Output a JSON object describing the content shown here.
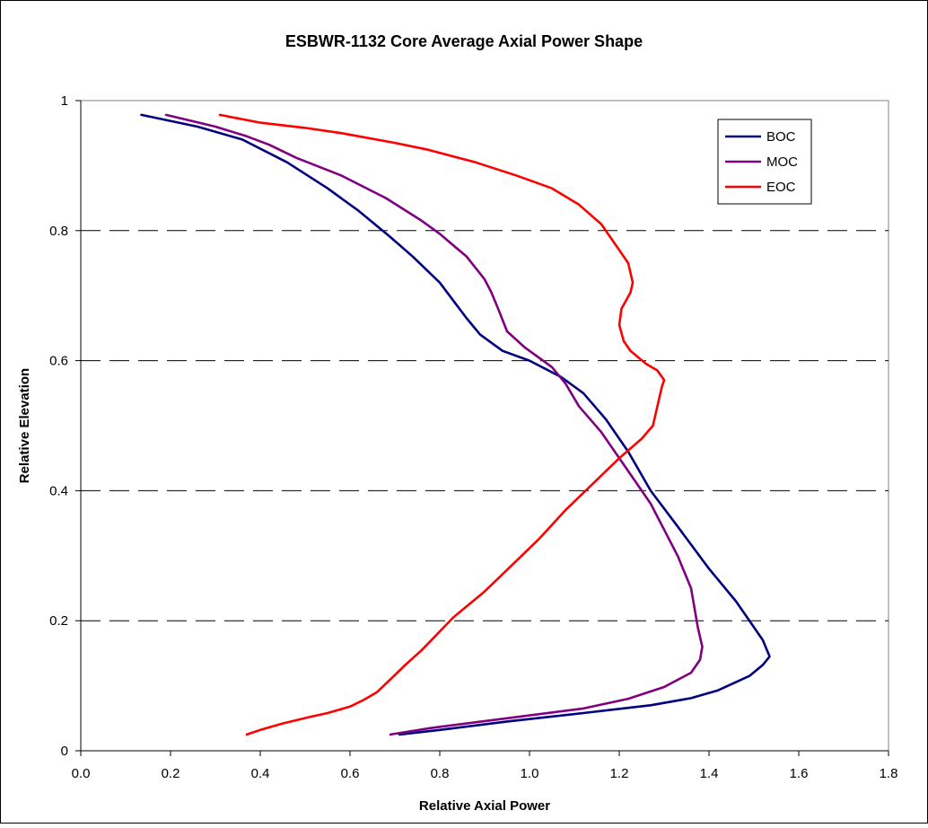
{
  "chart_data": {
    "type": "line",
    "title": "ESBWR-1132 Core Average Axial Power Shape",
    "xlabel": "Relative Axial Power",
    "ylabel": "Relative Elevation",
    "xlim": [
      0.0,
      1.8
    ],
    "ylim": [
      0,
      1
    ],
    "x_ticks": [
      "0.0",
      "0.2",
      "0.4",
      "0.6",
      "0.8",
      "1.0",
      "1.2",
      "1.4",
      "1.6",
      "1.8"
    ],
    "y_ticks": [
      "0",
      "0.2",
      "0.4",
      "0.6",
      "0.8",
      "1"
    ],
    "grid": "horizontal dashed",
    "legend_position": "top-right",
    "series": [
      {
        "name": "BOC",
        "color": "#000080",
        "points": [
          [
            0.71,
            0.025
          ],
          [
            0.8,
            0.032
          ],
          [
            0.95,
            0.045
          ],
          [
            1.12,
            0.058
          ],
          [
            1.22,
            0.066
          ],
          [
            1.27,
            0.07
          ],
          [
            1.36,
            0.081
          ],
          [
            1.42,
            0.093
          ],
          [
            1.49,
            0.115
          ],
          [
            1.52,
            0.132
          ],
          [
            1.535,
            0.145
          ],
          [
            1.52,
            0.17
          ],
          [
            1.5,
            0.19
          ],
          [
            1.46,
            0.23
          ],
          [
            1.4,
            0.28
          ],
          [
            1.33,
            0.345
          ],
          [
            1.27,
            0.4
          ],
          [
            1.22,
            0.46
          ],
          [
            1.17,
            0.51
          ],
          [
            1.12,
            0.55
          ],
          [
            1.07,
            0.575
          ],
          [
            1.0,
            0.6
          ],
          [
            0.94,
            0.615
          ],
          [
            0.89,
            0.64
          ],
          [
            0.86,
            0.665
          ],
          [
            0.8,
            0.72
          ],
          [
            0.74,
            0.76
          ],
          [
            0.69,
            0.79
          ],
          [
            0.62,
            0.83
          ],
          [
            0.55,
            0.865
          ],
          [
            0.46,
            0.905
          ],
          [
            0.36,
            0.94
          ],
          [
            0.26,
            0.96
          ],
          [
            0.135,
            0.978
          ]
        ]
      },
      {
        "name": "MOC",
        "color": "#800080",
        "points": [
          [
            0.69,
            0.025
          ],
          [
            0.78,
            0.035
          ],
          [
            0.95,
            0.05
          ],
          [
            1.12,
            0.065
          ],
          [
            1.22,
            0.08
          ],
          [
            1.3,
            0.098
          ],
          [
            1.36,
            0.12
          ],
          [
            1.38,
            0.14
          ],
          [
            1.385,
            0.16
          ],
          [
            1.375,
            0.19
          ],
          [
            1.36,
            0.25
          ],
          [
            1.33,
            0.3
          ],
          [
            1.27,
            0.38
          ],
          [
            1.21,
            0.44
          ],
          [
            1.16,
            0.49
          ],
          [
            1.11,
            0.53
          ],
          [
            1.08,
            0.565
          ],
          [
            1.05,
            0.59
          ],
          [
            0.99,
            0.62
          ],
          [
            0.95,
            0.645
          ],
          [
            0.93,
            0.68
          ],
          [
            0.915,
            0.705
          ],
          [
            0.9,
            0.725
          ],
          [
            0.86,
            0.76
          ],
          [
            0.8,
            0.795
          ],
          [
            0.76,
            0.815
          ],
          [
            0.68,
            0.85
          ],
          [
            0.58,
            0.885
          ],
          [
            0.48,
            0.912
          ],
          [
            0.42,
            0.932
          ],
          [
            0.37,
            0.945
          ],
          [
            0.3,
            0.96
          ],
          [
            0.19,
            0.978
          ]
        ]
      },
      {
        "name": "EOC",
        "color": "#ff0000",
        "points": [
          [
            0.37,
            0.025
          ],
          [
            0.4,
            0.032
          ],
          [
            0.45,
            0.042
          ],
          [
            0.51,
            0.052
          ],
          [
            0.55,
            0.058
          ],
          [
            0.6,
            0.068
          ],
          [
            0.63,
            0.078
          ],
          [
            0.66,
            0.09
          ],
          [
            0.69,
            0.11
          ],
          [
            0.72,
            0.13
          ],
          [
            0.76,
            0.155
          ],
          [
            0.83,
            0.205
          ],
          [
            0.9,
            0.245
          ],
          [
            0.96,
            0.285
          ],
          [
            1.02,
            0.325
          ],
          [
            1.08,
            0.37
          ],
          [
            1.14,
            0.41
          ],
          [
            1.2,
            0.45
          ],
          [
            1.25,
            0.48
          ],
          [
            1.275,
            0.5
          ],
          [
            1.285,
            0.53
          ],
          [
            1.295,
            0.56
          ],
          [
            1.3,
            0.57
          ],
          [
            1.285,
            0.585
          ],
          [
            1.26,
            0.595
          ],
          [
            1.225,
            0.615
          ],
          [
            1.21,
            0.63
          ],
          [
            1.2,
            0.655
          ],
          [
            1.205,
            0.68
          ],
          [
            1.225,
            0.705
          ],
          [
            1.23,
            0.72
          ],
          [
            1.22,
            0.75
          ],
          [
            1.19,
            0.78
          ],
          [
            1.16,
            0.81
          ],
          [
            1.11,
            0.84
          ],
          [
            1.05,
            0.865
          ],
          [
            0.97,
            0.885
          ],
          [
            0.88,
            0.905
          ],
          [
            0.77,
            0.925
          ],
          [
            0.7,
            0.935
          ],
          [
            0.58,
            0.95
          ],
          [
            0.5,
            0.958
          ],
          [
            0.4,
            0.966
          ],
          [
            0.31,
            0.978
          ]
        ]
      }
    ]
  }
}
